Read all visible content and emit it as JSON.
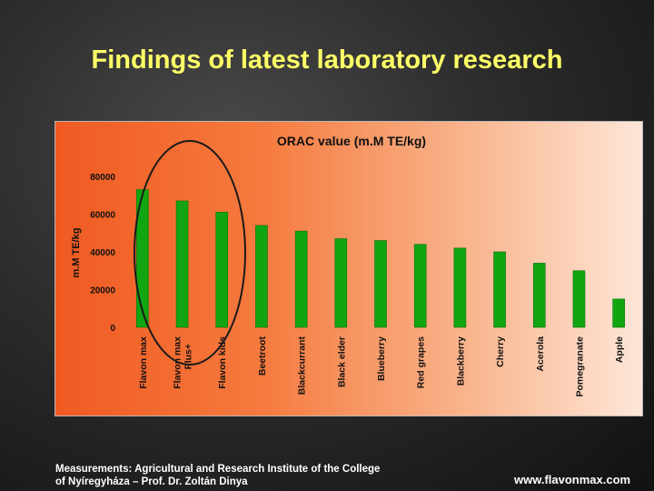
{
  "slide": {
    "title": "Findings of latest laboratory research",
    "source_line1": "Measurements: Agricultural and Research Institute of the College",
    "source_line2": "of Nyíregyháza – Prof. Dr. Zoltán Dinya",
    "website": "www.flavonmax.com"
  },
  "colors": {
    "bar": "#11a611",
    "bar_edge": "#0a700a",
    "highlight_ellipse": "#1a1a1a",
    "title_text": "#ffff66"
  },
  "chart_data": {
    "type": "bar",
    "title": "ORAC value (m.M TE/kg)",
    "ylabel": "m.M TE/kg",
    "xlabel": "",
    "ylim": [
      0,
      80000
    ],
    "yticks": [
      0,
      20000,
      40000,
      60000,
      80000
    ],
    "grid": false,
    "legend": "none",
    "categories": [
      "Flavon max",
      "Flavon max Plus+",
      "Flavon kids",
      "Beetroot",
      "Blackcurrant",
      "Black elder",
      "Blueberry",
      "Red grapes",
      "Blackberry",
      "Cherry",
      "Acerola",
      "Pomegranate",
      "Apple"
    ],
    "values": [
      73000,
      67000,
      61000,
      54000,
      51000,
      47000,
      46000,
      44000,
      42000,
      40000,
      34000,
      30000,
      15000
    ],
    "highlighted_categories": [
      "Flavon max",
      "Flavon max Plus+",
      "Flavon kids"
    ]
  }
}
